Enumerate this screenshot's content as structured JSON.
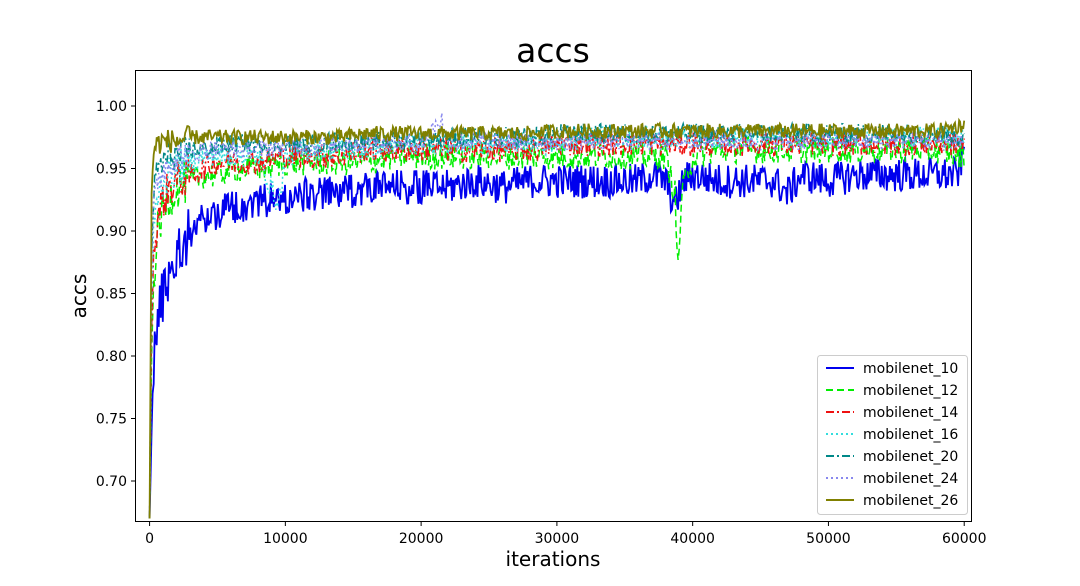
{
  "chart_data": {
    "type": "line",
    "title": "accs",
    "xlabel": "iterations",
    "ylabel": "accs",
    "xlim": [
      -1000,
      60500
    ],
    "ylim": [
      0.668,
      1.028
    ],
    "xticks": [
      0,
      10000,
      20000,
      30000,
      40000,
      50000,
      60000
    ],
    "xtick_labels": [
      "0",
      "10000",
      "20000",
      "30000",
      "40000",
      "50000",
      "60000"
    ],
    "yticks": [
      0.7,
      0.75,
      0.8,
      0.85,
      0.9,
      0.95,
      1.0
    ],
    "ytick_labels": [
      "0.70",
      "0.75",
      "0.80",
      "0.85",
      "0.90",
      "0.95",
      "1.00"
    ],
    "grid": false,
    "legend_position": "lower-right",
    "series": [
      {
        "name": "mobilenet_10",
        "color": "#0000ee",
        "dash": "solid",
        "x": [
          0,
          150,
          300,
          500,
          800,
          1200,
          1600,
          2000,
          2500,
          3000,
          3500,
          4000,
          5000,
          6000,
          7000,
          8000,
          9000,
          10000,
          12000,
          14000,
          16000,
          18000,
          20000,
          22000,
          24000,
          26000,
          28000,
          30000,
          32000,
          34000,
          36000,
          37000,
          38000,
          38700,
          39000,
          39300,
          40000,
          42000,
          44000,
          46000,
          47000,
          48000,
          50000,
          52000,
          54000,
          56000,
          58000,
          59500,
          60000
        ],
        "values": [
          0.67,
          0.74,
          0.8,
          0.82,
          0.84,
          0.86,
          0.87,
          0.88,
          0.89,
          0.9,
          0.905,
          0.91,
          0.915,
          0.92,
          0.92,
          0.925,
          0.925,
          0.925,
          0.93,
          0.93,
          0.935,
          0.935,
          0.935,
          0.935,
          0.94,
          0.935,
          0.94,
          0.94,
          0.94,
          0.94,
          0.94,
          0.945,
          0.94,
          0.92,
          0.93,
          0.94,
          0.945,
          0.94,
          0.94,
          0.94,
          0.93,
          0.945,
          0.94,
          0.945,
          0.945,
          0.945,
          0.945,
          0.945,
          0.965
        ]
      },
      {
        "name": "mobilenet_12",
        "color": "#00ee00",
        "dash": "dashed",
        "x": [
          0,
          150,
          300,
          500,
          800,
          1200,
          1600,
          2000,
          3000,
          4000,
          5000,
          6000,
          8000,
          10000,
          12000,
          14000,
          16000,
          18000,
          20000,
          22000,
          24000,
          26000,
          28000,
          30000,
          32000,
          34000,
          36000,
          38000,
          38700,
          38900,
          39200,
          40000,
          42000,
          44000,
          46000,
          48000,
          50000,
          52000,
          54000,
          56000,
          58000,
          60000
        ],
        "values": [
          0.67,
          0.8,
          0.86,
          0.89,
          0.91,
          0.92,
          0.93,
          0.935,
          0.94,
          0.945,
          0.945,
          0.95,
          0.95,
          0.955,
          0.955,
          0.955,
          0.955,
          0.96,
          0.96,
          0.96,
          0.96,
          0.96,
          0.96,
          0.96,
          0.96,
          0.96,
          0.96,
          0.96,
          0.93,
          0.865,
          0.93,
          0.96,
          0.965,
          0.965,
          0.965,
          0.965,
          0.965,
          0.965,
          0.965,
          0.965,
          0.965,
          0.96
        ]
      },
      {
        "name": "mobilenet_14",
        "color": "#ee1111",
        "dash": "dashdot",
        "x": [
          0,
          150,
          300,
          600,
          1000,
          1500,
          2000,
          3000,
          4000,
          5000,
          6000,
          8000,
          10000,
          12000,
          14000,
          16000,
          18000,
          20000,
          22000,
          24000,
          26000,
          28000,
          30000,
          32000,
          34000,
          36000,
          38000,
          40000,
          42000,
          44000,
          46000,
          48000,
          50000,
          52000,
          54000,
          56000,
          58000,
          60000
        ],
        "values": [
          0.67,
          0.82,
          0.88,
          0.91,
          0.925,
          0.935,
          0.94,
          0.945,
          0.95,
          0.955,
          0.955,
          0.955,
          0.96,
          0.96,
          0.96,
          0.965,
          0.965,
          0.965,
          0.965,
          0.965,
          0.965,
          0.965,
          0.97,
          0.97,
          0.97,
          0.97,
          0.97,
          0.97,
          0.97,
          0.97,
          0.97,
          0.97,
          0.97,
          0.97,
          0.97,
          0.97,
          0.97,
          0.97
        ]
      },
      {
        "name": "mobilenet_16",
        "color": "#33dddd",
        "dash": "dotted",
        "x": [
          0,
          150,
          300,
          600,
          1000,
          1500,
          2000,
          3000,
          4000,
          6000,
          8000,
          9500,
          10000,
          12000,
          14000,
          16000,
          18000,
          20000,
          22000,
          24000,
          26000,
          28000,
          30000,
          32000,
          34000,
          36000,
          38000,
          40000,
          42000,
          44000,
          46000,
          48000,
          50000,
          52000,
          54000,
          56000,
          58000,
          60000
        ],
        "values": [
          0.67,
          0.84,
          0.9,
          0.93,
          0.94,
          0.945,
          0.95,
          0.955,
          0.96,
          0.96,
          0.96,
          0.92,
          0.96,
          0.965,
          0.965,
          0.965,
          0.97,
          0.97,
          0.97,
          0.97,
          0.97,
          0.97,
          0.97,
          0.975,
          0.975,
          0.975,
          0.975,
          0.975,
          0.975,
          0.975,
          0.975,
          0.975,
          0.975,
          0.975,
          0.975,
          0.975,
          0.975,
          0.975
        ]
      },
      {
        "name": "mobilenet_20",
        "color": "#008888",
        "dash": "dashdot",
        "x": [
          0,
          150,
          300,
          600,
          1000,
          1500,
          2000,
          3000,
          4000,
          6000,
          8000,
          10000,
          12000,
          14000,
          16000,
          18000,
          20000,
          22000,
          24000,
          26000,
          28000,
          30000,
          32000,
          34000,
          36000,
          38000,
          40000,
          42000,
          44000,
          46000,
          48000,
          50000,
          52000,
          54000,
          56000,
          58000,
          60000
        ],
        "values": [
          0.67,
          0.88,
          0.93,
          0.95,
          0.955,
          0.96,
          0.96,
          0.965,
          0.965,
          0.97,
          0.97,
          0.97,
          0.97,
          0.972,
          0.972,
          0.972,
          0.975,
          0.975,
          0.975,
          0.975,
          0.975,
          0.978,
          0.978,
          0.978,
          0.978,
          0.978,
          0.978,
          0.978,
          0.978,
          0.978,
          0.978,
          0.978,
          0.978,
          0.978,
          0.978,
          0.978,
          0.975
        ]
      },
      {
        "name": "mobilenet_24",
        "color": "#8888ee",
        "dash": "dotted",
        "x": [
          0,
          150,
          300,
          600,
          1000,
          1500,
          2000,
          3000,
          4000,
          6000,
          8000,
          10000,
          12000,
          14000,
          16000,
          18000,
          20000,
          21500,
          22000,
          24000,
          26000,
          28000,
          30000,
          32000,
          34000,
          36000,
          38000,
          40000,
          42000,
          44000,
          46000,
          48000,
          50000,
          52000,
          54000,
          56000,
          58000,
          60000
        ],
        "values": [
          0.67,
          0.86,
          0.92,
          0.94,
          0.95,
          0.955,
          0.96,
          0.96,
          0.965,
          0.965,
          0.965,
          0.968,
          0.968,
          0.97,
          0.97,
          0.97,
          0.97,
          0.99,
          0.97,
          0.972,
          0.972,
          0.972,
          0.972,
          0.972,
          0.972,
          0.972,
          0.972,
          0.972,
          0.972,
          0.972,
          0.972,
          0.972,
          0.972,
          0.972,
          0.972,
          0.972,
          0.972,
          0.972
        ]
      },
      {
        "name": "mobilenet_26",
        "color": "#808000",
        "dash": "solid",
        "x": [
          0,
          150,
          300,
          600,
          1000,
          1500,
          2000,
          3000,
          4000,
          6000,
          8000,
          10000,
          12000,
          14000,
          16000,
          18000,
          20000,
          22000,
          24000,
          26000,
          28000,
          30000,
          32000,
          34000,
          36000,
          38000,
          40000,
          42000,
          44000,
          46000,
          48000,
          50000,
          52000,
          54000,
          56000,
          58000,
          60000
        ],
        "values": [
          0.67,
          0.93,
          0.965,
          0.97,
          0.972,
          0.972,
          0.972,
          0.975,
          0.975,
          0.975,
          0.975,
          0.975,
          0.975,
          0.975,
          0.978,
          0.978,
          0.978,
          0.978,
          0.978,
          0.978,
          0.978,
          0.98,
          0.98,
          0.98,
          0.98,
          0.98,
          0.98,
          0.98,
          0.98,
          0.98,
          0.98,
          0.98,
          0.98,
          0.98,
          0.98,
          0.98,
          0.985
        ]
      }
    ]
  }
}
